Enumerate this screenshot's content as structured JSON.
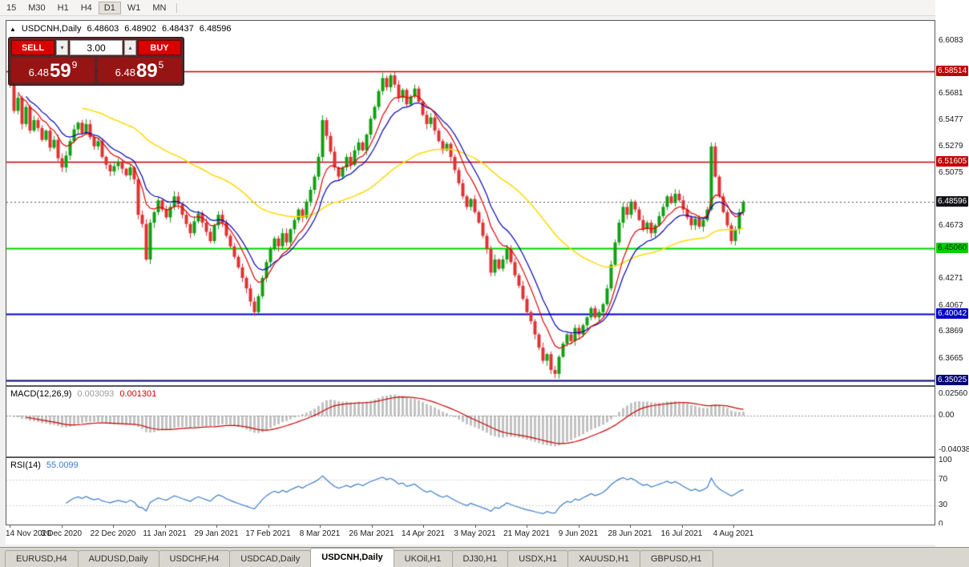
{
  "toolbar": {
    "periods": [
      "15",
      "M30",
      "H1",
      "H4",
      "D1",
      "W1",
      "MN"
    ],
    "active": "D1"
  },
  "chart": {
    "symbol_title": "USDCNH,Daily",
    "open": "6.48603",
    "high": "6.48902",
    "low": "6.48437",
    "close": "6.48596"
  },
  "trade_panel": {
    "sell_label": "SELL",
    "buy_label": "BUY",
    "volume": "3.00",
    "sell_price": {
      "prefix": "6.48",
      "big": "59",
      "sup": "9"
    },
    "buy_price": {
      "prefix": "6.48",
      "big": "89",
      "sup": "5"
    }
  },
  "price_axis": {
    "labels": [
      "6.6083",
      "6.5681",
      "6.5477",
      "6.5279",
      "6.5075",
      "6.4673",
      "6.4271",
      "6.4067",
      "6.3869",
      "6.3665"
    ],
    "badges": [
      {
        "value": "6.58514",
        "bg": "#c00000",
        "text": "#ffffff"
      },
      {
        "value": "6.51605",
        "bg": "#c00000",
        "text": "#ffffff"
      },
      {
        "value": "6.48596",
        "bg": "#131318",
        "text": "#ffffff"
      },
      {
        "value": "6.45060",
        "bg": "#00d200",
        "text": "#002800"
      },
      {
        "value": "6.40042",
        "bg": "#0000c8",
        "text": "#ffffff"
      },
      {
        "value": "6.35025",
        "bg": "#000078",
        "text": "#ffffff"
      }
    ]
  },
  "indicators": {
    "macd": {
      "name": "MACD(12,26,9)",
      "value_main": "0.003093",
      "value_signal": "0.001301",
      "axis": [
        "0.02560",
        "0.00",
        "-0.04038"
      ]
    },
    "rsi": {
      "name": "RSI(14)",
      "value": "55.0099",
      "axis": [
        "100",
        "70",
        "30",
        "0"
      ]
    }
  },
  "x_axis": {
    "labels": [
      "14 Nov 2020",
      "3 Dec 2020",
      "22 Dec 2020",
      "11 Jan 2021",
      "29 Jan 2021",
      "17 Feb 2021",
      "8 Mar 2021",
      "26 Mar 2021",
      "14 Apr 2021",
      "3 May 2021",
      "21 May 2021",
      "9 Jun 2021",
      "28 Jun 2021",
      "16 Jul 2021",
      "4 Aug 2021"
    ]
  },
  "tabs": {
    "items": [
      "EURUSD,H4",
      "AUDUSD,Daily",
      "USDCHF,H4",
      "USDCAD,Daily",
      "USDCNH,Daily",
      "UKOil,H1",
      "DJ30,H1",
      "USDX,H1",
      "XAUUSD,H1",
      "GBPUSD,H1"
    ],
    "active": "USDCNH,Daily"
  },
  "chart_data": {
    "type": "candlestick",
    "symbol": "USDCNH",
    "timeframe": "Daily",
    "price_top": 6.6235,
    "price_bottom": 6.3464,
    "colors": {
      "up": "#10a010",
      "down": "#e03232"
    },
    "closes": [
      6.575,
      6.555,
      6.565,
      6.545,
      6.558,
      6.54,
      6.548,
      6.542,
      6.533,
      6.54,
      6.527,
      6.533,
      6.519,
      6.512,
      6.521,
      6.532,
      6.541,
      6.546,
      6.538,
      6.545,
      6.535,
      6.528,
      6.532,
      6.52,
      6.514,
      6.509,
      6.513,
      6.516,
      6.511,
      6.506,
      6.512,
      6.503,
      6.476,
      6.469,
      6.442,
      6.47,
      6.478,
      6.487,
      6.48,
      6.474,
      6.482,
      6.49,
      6.484,
      6.476,
      6.469,
      6.462,
      6.471,
      6.477,
      6.47,
      6.463,
      6.456,
      6.468,
      6.476,
      6.47,
      6.46,
      6.452,
      6.444,
      6.436,
      6.428,
      6.42,
      6.41,
      6.402,
      6.414,
      6.428,
      6.44,
      6.45,
      6.458,
      6.452,
      6.462,
      6.455,
      6.465,
      6.472,
      6.48,
      6.474,
      6.486,
      6.495,
      6.505,
      6.52,
      6.548,
      6.536,
      6.524,
      6.512,
      6.505,
      6.512,
      6.52,
      6.514,
      6.525,
      6.531,
      6.525,
      6.537,
      6.549,
      6.558,
      6.57,
      6.58,
      6.573,
      6.582,
      6.575,
      6.565,
      6.571,
      6.56,
      6.566,
      6.572,
      6.562,
      6.552,
      6.545,
      6.55,
      6.54,
      6.532,
      6.525,
      6.53,
      6.52,
      6.51,
      6.5,
      6.49,
      6.482,
      6.488,
      6.478,
      6.47,
      6.46,
      6.45,
      6.432,
      6.442,
      6.435,
      6.442,
      6.45,
      6.44,
      6.43,
      6.422,
      6.412,
      6.402,
      6.395,
      6.385,
      6.375,
      6.365,
      6.37,
      6.358,
      6.355,
      6.368,
      6.378,
      6.385,
      6.38,
      6.39,
      6.385,
      6.392,
      6.398,
      6.405,
      6.398,
      6.402,
      6.408,
      6.42,
      6.438,
      6.455,
      6.47,
      6.482,
      6.476,
      6.486,
      6.48,
      6.472,
      6.465,
      6.47,
      6.462,
      6.468,
      6.475,
      6.482,
      6.49,
      6.485,
      6.492,
      6.487,
      6.48,
      6.474,
      6.468,
      6.473,
      6.467,
      6.472,
      6.48,
      6.528,
      6.505,
      6.49,
      6.478,
      6.468,
      6.456,
      6.465,
      6.478,
      6.486
    ],
    "moving_averages": [
      {
        "period": 55,
        "color": "#ffd800",
        "width": 1.5
      },
      {
        "period": 13,
        "color": "#0000b4",
        "width": 1.2
      },
      {
        "period": 8,
        "color": "#e00000",
        "width": 1.2
      }
    ],
    "levels": [
      {
        "price": 6.58514,
        "color": "#c00000",
        "width": 1.5
      },
      {
        "price": 6.51605,
        "color": "#c00000",
        "width": 1.5
      },
      {
        "price": 6.48596,
        "color": "#505050",
        "width": 1,
        "dotted": true
      },
      {
        "price": 6.4506,
        "color": "#00d200",
        "width": 2
      },
      {
        "price": 6.40042,
        "color": "#0000c8",
        "width": 2
      },
      {
        "price": 6.35025,
        "color": "#000078",
        "width": 2
      }
    ],
    "macd": {
      "fast": 12,
      "slow": 26,
      "signal": 9,
      "histogram_color": "#c2c2c2",
      "signal_color": "#cc0000",
      "axis_top_value": 0.0256,
      "axis_bottom_value": -0.04038
    },
    "rsi": {
      "period": 14,
      "color": "#3c7cc8",
      "levels": [
        30,
        70
      ]
    }
  }
}
